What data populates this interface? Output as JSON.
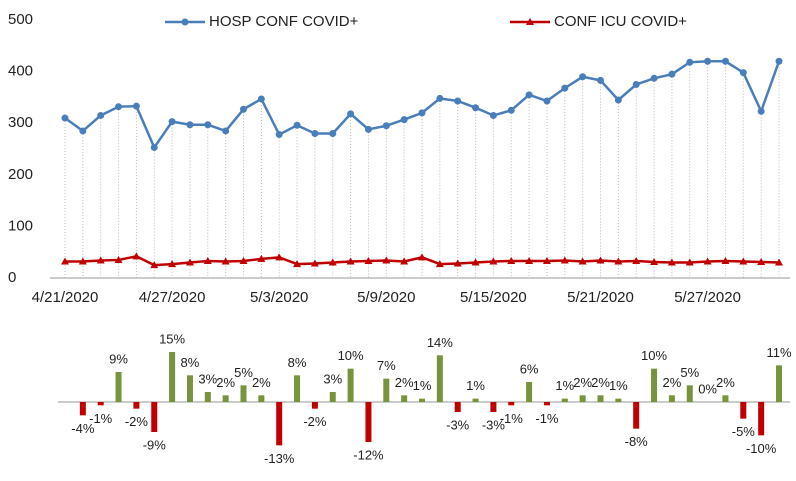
{
  "chart_data": [
    {
      "type": "line",
      "categories": [
        "4/21/2020",
        null,
        null,
        null,
        null,
        null,
        "4/27/2020",
        null,
        null,
        null,
        null,
        null,
        "5/3/2020",
        null,
        null,
        null,
        null,
        null,
        "5/9/2020",
        null,
        null,
        null,
        null,
        null,
        "5/15/2020",
        null,
        null,
        null,
        null,
        null,
        "5/21/2020",
        null,
        null,
        null,
        null,
        null,
        "5/27/2020",
        null,
        null,
        null,
        null
      ],
      "series": [
        {
          "name": "HOSP CONF COVID+",
          "color": "#4a7ebb",
          "marker": "circle",
          "values": [
            310,
            285,
            315,
            332,
            333,
            253,
            303,
            297,
            297,
            285,
            327,
            347,
            278,
            296,
            280,
            280,
            318,
            288,
            295,
            307,
            320,
            348,
            343,
            330,
            315,
            325,
            355,
            343,
            368,
            390,
            383,
            345,
            375,
            387,
            395,
            418,
            420,
            420,
            398,
            323,
            420
          ]
        },
        {
          "name": "CONF ICU COVID+",
          "color": "#c00000",
          "marker": "triangle",
          "values": [
            32,
            32,
            34,
            35,
            42,
            25,
            27,
            30,
            33,
            32,
            33,
            37,
            40,
            27,
            28,
            30,
            32,
            33,
            34,
            32,
            40,
            27,
            28,
            30,
            32,
            33,
            33,
            33,
            34,
            32,
            34,
            32,
            33,
            31,
            30,
            30,
            32,
            33,
            32,
            31,
            30
          ]
        }
      ],
      "ylim": [
        0,
        500
      ],
      "yticks": [
        0,
        100,
        200,
        300,
        400,
        500
      ],
      "drop_lines": true
    },
    {
      "type": "bar",
      "positive_color": "#77933c",
      "negative_color": "#c00000",
      "values": [
        -4,
        -1,
        9,
        -2,
        -9,
        15,
        8,
        3,
        2,
        5,
        2,
        -13,
        8,
        -2,
        3,
        10,
        -12,
        7,
        2,
        1,
        14,
        -3,
        1,
        -3,
        -1,
        6,
        -1,
        1,
        2,
        2,
        1,
        -8,
        10,
        2,
        5,
        0,
        2,
        -5,
        -10,
        11
      ],
      "value_labels": [
        "-4%",
        "-1%",
        "9%",
        "-2%",
        "-9%",
        "15%",
        "8%",
        "3%",
        "2%",
        "5%",
        "2%",
        "-13%",
        "8%",
        "-2%",
        "3%",
        "10%",
        "-12%",
        "7%",
        "2%",
        "1%",
        "14%",
        "-3%",
        "1%",
        "-3%",
        "-1%",
        "6%",
        "-1%",
        "1%",
        "2%",
        "2%",
        "1%",
        "-8%",
        "10%",
        "2%",
        "5%",
        "0%",
        "2%",
        "-5%",
        "-10%",
        "11%"
      ],
      "ylim": [
        -15,
        15
      ]
    }
  ]
}
